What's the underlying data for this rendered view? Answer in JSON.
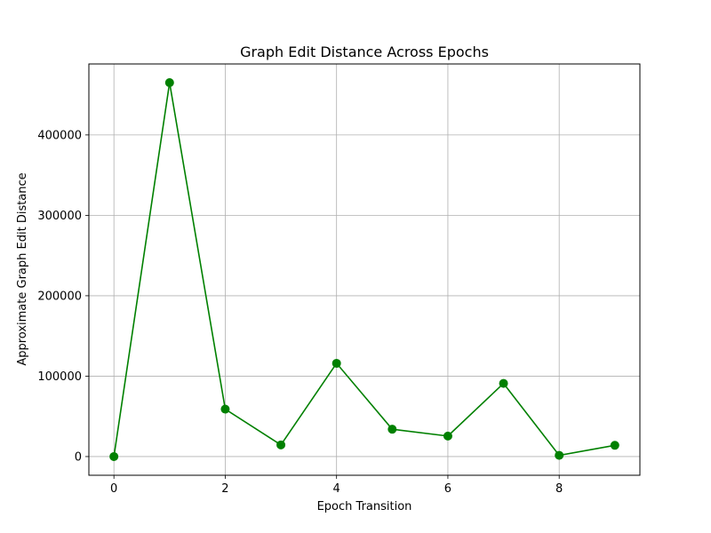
{
  "chart_data": {
    "type": "line",
    "title": "Graph Edit Distance Across Epochs",
    "xlabel": "Epoch Transition",
    "ylabel": "Approximate Graph Edit Distance",
    "x": [
      0,
      1,
      2,
      3,
      4,
      5,
      6,
      7,
      8,
      9
    ],
    "series": [
      {
        "values": [
          0,
          465000,
          59000,
          14500,
          116000,
          34000,
          25500,
          91000,
          1500,
          14000
        ],
        "color": "#008000",
        "marker": "circle"
      }
    ],
    "xlim": [
      -0.45,
      9.45
    ],
    "ylim": [
      -23250,
      488250
    ],
    "xticks": [
      0,
      2,
      4,
      6,
      8
    ],
    "xtick_labels": [
      "0",
      "2",
      "4",
      "6",
      "8"
    ],
    "yticks": [
      0,
      100000,
      200000,
      300000,
      400000
    ],
    "ytick_labels": [
      "0",
      "100000",
      "200000",
      "300000",
      "400000"
    ],
    "grid": true,
    "legend": false
  }
}
